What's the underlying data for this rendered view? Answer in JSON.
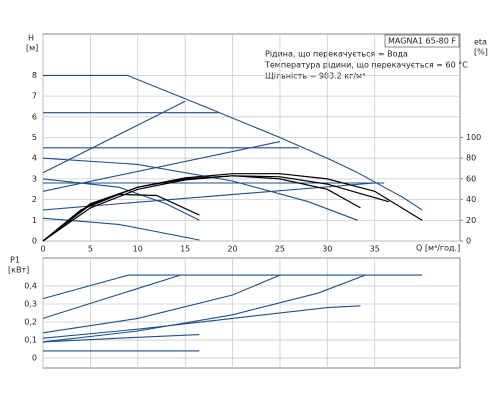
{
  "chart_data": [
    {
      "type": "line",
      "title": "MAGNA1 65-80 F",
      "annotations": [
        "Рідина, що перекачується = Вода",
        "Температура рідини, що перекачується = 60 °C",
        "Щільність = 983.2 кг/м³"
      ],
      "ylabel": "H",
      "yunit": "[м]",
      "y2label": "eta",
      "y2unit": "[%]",
      "xlabel": "Q [м³/год.]",
      "xlim": [
        0,
        44
      ],
      "xticks": [
        0,
        5,
        10,
        15,
        20,
        25,
        30,
        35
      ],
      "ylim": [
        0,
        10
      ],
      "yticks": [
        0,
        1,
        2,
        3,
        4,
        5,
        6,
        7,
        8
      ],
      "y2lim": [
        0,
        200
      ],
      "y2ticks": [
        0,
        20,
        40,
        60,
        80,
        100
      ],
      "grid": true,
      "series": [
        {
          "color": "#1f4e8c",
          "x": [
            0,
            8.9,
            17,
            25,
            30,
            33,
            36,
            38,
            40
          ],
          "values": [
            8,
            8,
            6.5,
            5,
            4,
            3.35,
            2.6,
            2.1,
            1.5
          ]
        },
        {
          "color": "#1f4e8c",
          "x": [
            0,
            18.6
          ],
          "values": [
            6.2,
            6.2
          ]
        },
        {
          "color": "#1f4e8c",
          "x": [
            0,
            27
          ],
          "values": [
            4.5,
            4.5
          ]
        },
        {
          "color": "#1f4e8c",
          "x": [
            0,
            36
          ],
          "values": [
            2.8,
            2.8
          ]
        },
        {
          "color": "#1f4e8c",
          "x": [
            0,
            15
          ],
          "values": [
            3.3,
            6.75
          ]
        },
        {
          "color": "#1f4e8c",
          "x": [
            0,
            25
          ],
          "values": [
            2.4,
            4.8
          ]
        },
        {
          "color": "#1f4e8c",
          "x": [
            0,
            35
          ],
          "values": [
            1.5,
            2.8
          ]
        },
        {
          "color": "#1f4e8c",
          "x": [
            0,
            10,
            20,
            28,
            33.2
          ],
          "values": [
            4.0,
            3.7,
            2.9,
            1.9,
            1.0
          ]
        },
        {
          "color": "#1f4e8c",
          "x": [
            0,
            8,
            13,
            16.5
          ],
          "values": [
            3.0,
            2.6,
            1.8,
            1.0
          ]
        },
        {
          "color": "#1f4e8c",
          "x": [
            0,
            8,
            16.5
          ],
          "values": [
            1.1,
            0.8,
            0.05
          ]
        },
        {
          "color": "#000000",
          "axis": "y2",
          "x": [
            0,
            5,
            10,
            15,
            20,
            25,
            30,
            35,
            40
          ],
          "values": [
            0,
            35,
            52,
            61,
            65,
            65,
            60,
            48,
            20
          ]
        },
        {
          "color": "#000000",
          "axis": "y2",
          "x": [
            0,
            5,
            10,
            15,
            20,
            25,
            30,
            36.5
          ],
          "values": [
            0,
            32,
            50,
            59,
            63,
            62,
            55,
            38
          ]
        },
        {
          "color": "#000000",
          "axis": "y2",
          "x": [
            0,
            5,
            10,
            15,
            20,
            25,
            30,
            33.5
          ],
          "values": [
            0,
            36,
            52,
            60,
            63,
            60,
            50,
            32
          ]
        },
        {
          "color": "#000000",
          "axis": "y2",
          "x": [
            0,
            4,
            8,
            12,
            16.5
          ],
          "values": [
            0,
            30,
            45,
            44,
            25
          ]
        }
      ]
    },
    {
      "type": "line",
      "ylabel": "P1",
      "yunit": "[кВт]",
      "xlim": [
        0,
        44
      ],
      "ylim": [
        -0.055,
        0.555
      ],
      "yticks": [
        0,
        {
          "value": 0.1,
          "label": "0,1"
        },
        {
          "value": 0.2,
          "label": "0,2"
        },
        {
          "value": 0.3,
          "label": "0,3"
        },
        {
          "value": 0.4,
          "label": "0,4"
        }
      ],
      "grid": true,
      "series": [
        {
          "color": "#1f4e8c",
          "x": [
            0,
            9,
            40
          ],
          "values": [
            0.33,
            0.46,
            0.46
          ]
        },
        {
          "color": "#1f4e8c",
          "x": [
            0,
            6,
            14.5
          ],
          "values": [
            0.22,
            0.32,
            0.46
          ]
        },
        {
          "color": "#1f4e8c",
          "x": [
            0,
            10,
            20,
            25
          ],
          "values": [
            0.14,
            0.22,
            0.35,
            0.46
          ]
        },
        {
          "color": "#1f4e8c",
          "x": [
            0,
            10,
            20,
            29,
            34
          ],
          "values": [
            0.09,
            0.15,
            0.24,
            0.36,
            0.46
          ]
        },
        {
          "color": "#1f4e8c",
          "x": [
            0,
            10,
            20,
            30,
            33.5
          ],
          "values": [
            0.11,
            0.16,
            0.22,
            0.28,
            0.29
          ]
        },
        {
          "color": "#1f4e8c",
          "x": [
            0,
            8,
            16.5
          ],
          "values": [
            0.09,
            0.11,
            0.13
          ]
        },
        {
          "color": "#1f4e8c",
          "x": [
            0,
            16.5
          ],
          "values": [
            0.04,
            0.04
          ]
        }
      ]
    }
  ]
}
